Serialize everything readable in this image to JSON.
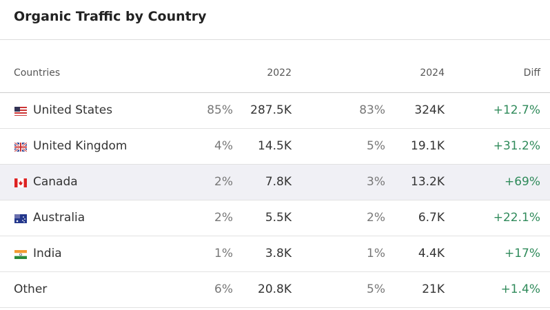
{
  "header": {
    "title": "Organic Traffic by Country"
  },
  "table": {
    "columns": [
      "Countries",
      "2022",
      "2024",
      "Diff"
    ],
    "rows": [
      [
        "United States",
        "85%",
        "287.5K",
        "83%",
        "324K",
        "+12.7%"
      ],
      [
        "United Kingdom",
        "4%",
        "14.5K",
        "5%",
        "19.1K",
        "+31.2%"
      ],
      [
        "Canada",
        "2%",
        "7.8K",
        "3%",
        "13.2K",
        "+69%"
      ],
      [
        "Australia",
        "2%",
        "5.5K",
        "2%",
        "6.7K",
        "+22.1%"
      ],
      [
        "India",
        "1%",
        "3.8K",
        "1%",
        "4.4K",
        "+17%"
      ],
      [
        "Other",
        "6%",
        "20.8K",
        "5%",
        "21K",
        "+1.4%"
      ]
    ]
  }
}
